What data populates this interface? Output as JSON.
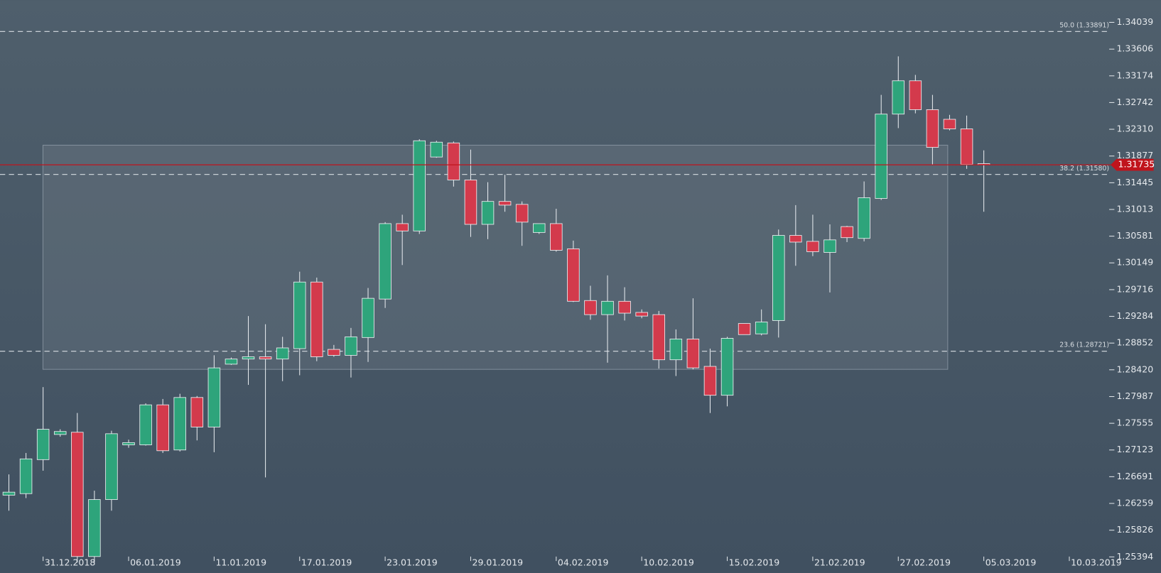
{
  "chart_data": {
    "type": "candlestick",
    "categories": [
      null,
      null,
      "31.12.2018",
      null,
      null,
      null,
      null,
      "06.01.2019",
      null,
      null,
      null,
      null,
      "11.01.2019",
      null,
      null,
      null,
      null,
      "17.01.2019",
      null,
      null,
      null,
      null,
      "23.01.2019",
      null,
      null,
      null,
      null,
      "29.01.2019",
      null,
      null,
      null,
      null,
      "04.02.2019",
      null,
      null,
      null,
      null,
      "10.02.2019",
      null,
      null,
      null,
      null,
      "15.02.2019",
      null,
      null,
      null,
      null,
      "21.02.2019",
      null,
      null,
      null,
      null,
      "27.02.2019",
      null,
      null,
      null,
      null,
      "05.03.2019",
      null,
      null,
      null,
      null,
      "10.03.2019"
    ],
    "open": [
      1.26393,
      1.26417,
      1.26967,
      1.27374,
      1.2741,
      1.254,
      1.26321,
      1.27206,
      1.27206,
      1.27853,
      1.27123,
      1.27972,
      1.27494,
      1.28511,
      1.28594,
      1.2863,
      1.28594,
      1.28762,
      1.29839,
      1.2875,
      1.28654,
      1.28942,
      1.29564,
      1.30784,
      1.30665,
      1.31861,
      1.32089,
      1.3149,
      1.30772,
      1.31143,
      1.31095,
      1.30641,
      1.30784,
      1.30377,
      1.2954,
      1.29312,
      1.29528,
      1.29348,
      1.29312,
      1.28582,
      1.28918,
      1.28475,
      1.28008,
      1.29169,
      1.29001,
      1.29217,
      1.30593,
      1.30497,
      1.30318,
      1.30736,
      1.30545,
      1.31191,
      1.32555,
      1.33094,
      1.32627,
      1.32471,
      1.32316,
      1.31753,
      null,
      null,
      null,
      null,
      null
    ],
    "high": [
      1.26728,
      1.27075,
      1.2814,
      1.27458,
      1.27721,
      1.26465,
      1.27434,
      1.2729,
      1.27877,
      1.27948,
      1.28032,
      1.27996,
      1.28654,
      1.28618,
      1.29289,
      1.29157,
      1.28953,
      1.30006,
      1.29911,
      1.28822,
      1.29097,
      1.29743,
      1.30808,
      1.30928,
      1.32148,
      1.32124,
      1.32112,
      1.31981,
      1.31454,
      1.31574,
      1.31143,
      1.30784,
      1.31024,
      1.30509,
      1.29779,
      1.29947,
      1.29755,
      1.29396,
      1.29372,
      1.29073,
      1.29576,
      1.28762,
      1.28953,
      1.29169,
      1.29396,
      1.30689,
      1.31083,
      1.30928,
      1.30772,
      1.30748,
      1.31466,
      1.32866,
      1.33489,
      1.33189,
      1.32866,
      1.32543,
      1.32531,
      1.31969,
      null,
      null,
      null,
      null,
      null
    ],
    "low": [
      1.26141,
      1.26345,
      1.26788,
      1.27338,
      1.25304,
      1.25304,
      1.26141,
      1.27159,
      1.27194,
      1.27075,
      1.27099,
      1.27278,
      1.27087,
      1.28499,
      1.28176,
      1.2668,
      1.28236,
      1.28331,
      1.28559,
      1.2863,
      1.28295,
      1.28547,
      1.2942,
      1.30114,
      1.30617,
      1.31849,
      1.31383,
      1.30569,
      1.30533,
      1.30976,
      1.30425,
      1.30617,
      1.3033,
      1.29516,
      1.29229,
      1.28535,
      1.29217,
      1.29253,
      1.28439,
      1.28319,
      1.28427,
      1.27721,
      1.27829,
      1.28989,
      1.28977,
      1.28942,
      1.30102,
      1.30258,
      1.29671,
      1.30485,
      1.30497,
      1.31167,
      1.32328,
      1.32567,
      1.31742,
      1.32292,
      1.3167,
      1.30976,
      null,
      null,
      null,
      null,
      null
    ],
    "close": [
      1.26441,
      1.26979,
      1.27458,
      1.27422,
      1.254,
      1.26321,
      1.27386,
      1.27242,
      1.27853,
      1.27111,
      1.27972,
      1.27494,
      1.28451,
      1.28594,
      1.2863,
      1.28594,
      1.28774,
      1.29839,
      1.2863,
      1.28654,
      1.28953,
      1.29576,
      1.30784,
      1.30665,
      1.32124,
      1.32101,
      1.3149,
      1.30772,
      1.31143,
      1.31083,
      1.30808,
      1.30784,
      1.30353,
      1.29528,
      1.29312,
      1.29528,
      1.29336,
      1.29289,
      1.28582,
      1.28918,
      1.28451,
      1.28008,
      1.28929,
      1.28989,
      1.29193,
      1.30593,
      1.30485,
      1.3033,
      1.30521,
      1.30557,
      1.31203,
      1.32555,
      1.33094,
      1.32627,
      1.32017,
      1.32316,
      1.31742,
      1.31735,
      null,
      null,
      null,
      null,
      null
    ],
    "up_color": "#2ea47b",
    "down_color": "#d33a4c",
    "ylim": [
      1.25136,
      1.34398
    ],
    "yticks": [
      1.34039,
      1.33606,
      1.33174,
      1.32742,
      {
        "value": 1.3231,
        "label": "1.32310"
      },
      1.31877,
      1.31445,
      1.31013,
      1.30581,
      1.30149,
      1.29716,
      1.29284,
      1.28852,
      {
        "value": 1.2842,
        "label": "1.28420"
      },
      1.27987,
      1.27555,
      1.27123,
      1.26691,
      1.26259,
      1.25826,
      1.25394
    ],
    "levels": [
      {
        "value": 1.33891,
        "label": "50.0 (1.33891)"
      },
      {
        "value": 1.3158,
        "label": "38.2 (1.31580)"
      },
      {
        "value": 1.28721,
        "label": "23.6 (1.28721)"
      }
    ],
    "last_price": 1.31735,
    "last_color": "#c0141c"
  }
}
